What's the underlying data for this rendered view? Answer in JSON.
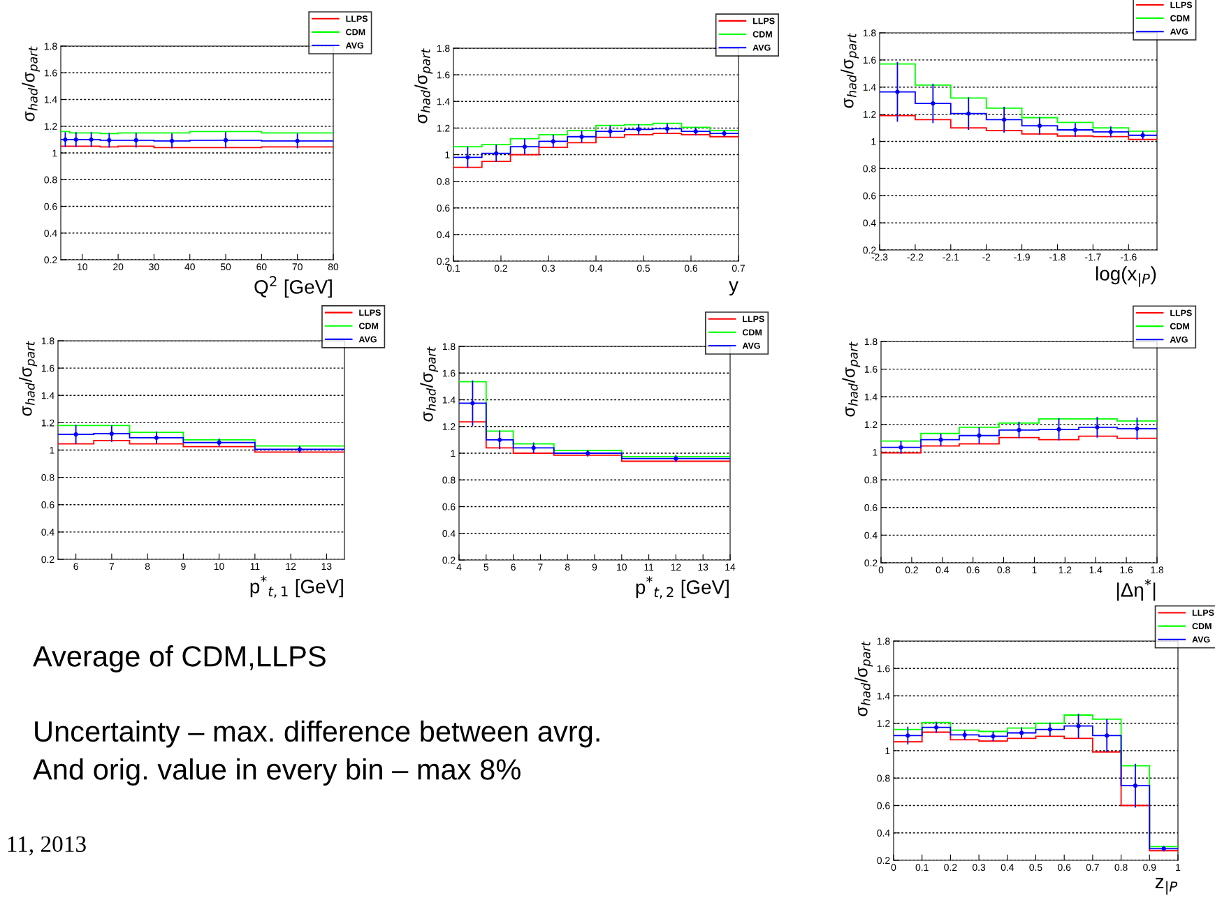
{
  "chart_data": [
    {
      "type": "histogram",
      "xlabel": "Q$^{2}$ [GeV]",
      "ylabel": "σ$_{had}$/σ$_{part}$",
      "bins": [
        4,
        6.5,
        10,
        15,
        20,
        30,
        40,
        60,
        80
      ],
      "xlim": [
        4,
        80
      ],
      "xticks": [
        10,
        20,
        30,
        40,
        50,
        60,
        70,
        80
      ],
      "ylim": [
        0.2,
        1.8
      ],
      "yticks": [
        0.2,
        0.4,
        0.6,
        0.8,
        1,
        1.2,
        1.4,
        1.6,
        1.8
      ],
      "grid": "y",
      "legend": "top right",
      "series": [
        {
          "name": "LLPS",
          "color": "#ff0000",
          "values": [
            1.05,
            1.05,
            1.05,
            1.045,
            1.05,
            1.04,
            1.04,
            1.045
          ]
        },
        {
          "name": "CDM",
          "color": "#00ff00",
          "values": [
            1.16,
            1.15,
            1.15,
            1.145,
            1.15,
            1.15,
            1.16,
            1.15
          ]
        },
        {
          "name": "AVG",
          "color": "#0000ff",
          "values": [
            1.1,
            1.1,
            1.1,
            1.095,
            1.095,
            1.09,
            1.095,
            1.09
          ]
        },
        {
          "type": "scatter",
          "marker": "circle",
          "color": "#0000ff",
          "x": [
            5.25,
            8.25,
            12.5,
            17.5,
            25,
            35,
            50,
            70
          ],
          "values": [
            1.1,
            1.1,
            1.1,
            1.095,
            1.095,
            1.09,
            1.095,
            1.09
          ],
          "errors": [
            0.055,
            0.055,
            0.055,
            0.055,
            0.055,
            0.055,
            0.06,
            0.055
          ]
        }
      ]
    },
    {
      "type": "histogram",
      "xlabel": "y",
      "ylabel": "σ$_{had}$/σ$_{part}$",
      "bins": [
        0.1,
        0.16,
        0.22,
        0.28,
        0.34,
        0.4,
        0.46,
        0.52,
        0.58,
        0.64,
        0.7
      ],
      "xlim": [
        0.1,
        0.7
      ],
      "xticks": [
        0.1,
        0.2,
        0.3,
        0.4,
        0.5,
        0.6,
        0.7
      ],
      "ylim": [
        0.2,
        1.8
      ],
      "yticks": [
        0.2,
        0.4,
        0.6,
        0.8,
        1,
        1.2,
        1.4,
        1.6,
        1.8
      ],
      "grid": "y",
      "legend": "top right",
      "series": [
        {
          "name": "LLPS",
          "color": "#ff0000",
          "values": [
            0.905,
            0.95,
            1.0,
            1.055,
            1.09,
            1.13,
            1.15,
            1.16,
            1.15,
            1.135
          ]
        },
        {
          "name": "CDM",
          "color": "#00ff00",
          "values": [
            1.06,
            1.075,
            1.12,
            1.15,
            1.18,
            1.22,
            1.225,
            1.235,
            1.205,
            1.18
          ]
        },
        {
          "name": "AVG",
          "color": "#0000ff",
          "values": [
            0.98,
            1.01,
            1.06,
            1.1,
            1.135,
            1.175,
            1.19,
            1.195,
            1.175,
            1.16
          ]
        },
        {
          "type": "scatter",
          "marker": "circle",
          "color": "#0000ff",
          "x": [
            0.13,
            0.19,
            0.25,
            0.31,
            0.37,
            0.43,
            0.49,
            0.55,
            0.61,
            0.67
          ],
          "values": [
            0.98,
            1.01,
            1.06,
            1.1,
            1.135,
            1.175,
            1.19,
            1.195,
            1.175,
            1.16
          ],
          "errors": [
            0.08,
            0.065,
            0.06,
            0.05,
            0.045,
            0.045,
            0.04,
            0.04,
            0.03,
            0.025
          ]
        }
      ]
    },
    {
      "type": "histogram",
      "xlabel": "log(x$_{|P}$)",
      "ylabel": "σ$_{had}$/σ$_{part}$",
      "bins": [
        -2.3,
        -2.2,
        -2.1,
        -2.0,
        -1.9,
        -1.8,
        -1.7,
        -1.6,
        -1.52
      ],
      "xlim": [
        -2.3,
        -1.52
      ],
      "xticks": [
        -2.3,
        -2.2,
        -2.1,
        -2,
        -1.9,
        -1.8,
        -1.7,
        -1.6
      ],
      "ylim": [
        0.2,
        1.8
      ],
      "yticks": [
        0.2,
        0.4,
        0.6,
        0.8,
        1,
        1.2,
        1.4,
        1.6,
        1.8
      ],
      "grid": "y",
      "legend": "top right",
      "series": [
        {
          "name": "LLPS",
          "color": "#ff0000",
          "values": [
            1.19,
            1.16,
            1.1,
            1.08,
            1.055,
            1.04,
            1.035,
            1.015
          ]
        },
        {
          "name": "CDM",
          "color": "#00ff00",
          "values": [
            1.57,
            1.415,
            1.32,
            1.245,
            1.175,
            1.14,
            1.1,
            1.075
          ]
        },
        {
          "name": "AVG",
          "color": "#0000ff",
          "values": [
            1.365,
            1.28,
            1.205,
            1.16,
            1.115,
            1.085,
            1.07,
            1.045
          ]
        },
        {
          "type": "scatter",
          "marker": "circle",
          "color": "#0000ff",
          "x": [
            -2.25,
            -2.15,
            -2.05,
            -1.95,
            -1.85,
            -1.75,
            -1.65,
            -1.56
          ],
          "values": [
            1.365,
            1.28,
            1.205,
            1.16,
            1.115,
            1.085,
            1.07,
            1.045
          ],
          "errors": [
            0.22,
            0.145,
            0.12,
            0.095,
            0.065,
            0.05,
            0.04,
            0.03
          ]
        }
      ]
    },
    {
      "type": "histogram",
      "xlabel": "p$^{*}$$_{t,1}$ [GeV]",
      "ylabel": "σ$_{had}$/σ$_{part}$",
      "bins": [
        5.5,
        6.5,
        7.5,
        9,
        11,
        13.5
      ],
      "xlim": [
        5.5,
        13.5
      ],
      "xticks": [
        6,
        7,
        8,
        9,
        10,
        11,
        12,
        13
      ],
      "ylim": [
        0.2,
        1.8
      ],
      "yticks": [
        0.2,
        0.4,
        0.6,
        0.8,
        1,
        1.2,
        1.4,
        1.6,
        1.8
      ],
      "grid": "y",
      "legend": "top right",
      "series": [
        {
          "name": "LLPS",
          "color": "#ff0000",
          "values": [
            1.045,
            1.07,
            1.045,
            1.025,
            0.985
          ]
        },
        {
          "name": "CDM",
          "color": "#00ff00",
          "values": [
            1.18,
            1.18,
            1.13,
            1.075,
            1.03
          ]
        },
        {
          "name": "AVG",
          "color": "#0000ff",
          "values": [
            1.115,
            1.12,
            1.09,
            1.055,
            1.005
          ]
        },
        {
          "type": "scatter",
          "marker": "circle",
          "color": "#0000ff",
          "x": [
            6,
            7,
            8.25,
            10,
            12.25
          ],
          "values": [
            1.115,
            1.12,
            1.09,
            1.055,
            1.005
          ],
          "errors": [
            0.07,
            0.06,
            0.045,
            0.03,
            0.025
          ]
        }
      ]
    },
    {
      "type": "histogram",
      "xlabel": "p$^{*}$$_{t,2}$ [GeV]",
      "ylabel": "σ$_{had}$/σ$_{part}$",
      "bins": [
        4,
        5,
        6,
        7.5,
        10,
        14
      ],
      "xlim": [
        4,
        14
      ],
      "xticks": [
        4,
        5,
        6,
        7,
        8,
        9,
        10,
        11,
        12,
        13,
        14
      ],
      "ylim": [
        0.2,
        1.8
      ],
      "yticks": [
        0.2,
        0.4,
        0.6,
        0.8,
        1,
        1.2,
        1.4,
        1.6,
        1.8
      ],
      "grid": "y",
      "legend": "top right",
      "series": [
        {
          "name": "LLPS",
          "color": "#ff0000",
          "values": [
            1.235,
            1.04,
            1.0,
            0.985,
            0.94
          ]
        },
        {
          "name": "CDM",
          "color": "#00ff00",
          "values": [
            1.535,
            1.165,
            1.07,
            1.02,
            0.975
          ]
        },
        {
          "name": "AVG",
          "color": "#0000ff",
          "values": [
            1.375,
            1.1,
            1.04,
            1.0,
            0.96
          ]
        },
        {
          "type": "scatter",
          "marker": "circle",
          "color": "#0000ff",
          "x": [
            4.5,
            5.5,
            6.75,
            8.75,
            12
          ],
          "values": [
            1.375,
            1.1,
            1.04,
            1.0,
            0.96
          ],
          "errors": [
            0.17,
            0.07,
            0.04,
            0.025,
            0.025
          ]
        }
      ]
    },
    {
      "type": "histogram",
      "xlabel": "|Δη$^{*}$|",
      "ylabel": "σ$_{had}$/σ$_{part}$",
      "bins": [
        0,
        0.26,
        0.51,
        0.77,
        1.03,
        1.29,
        1.54,
        1.8
      ],
      "xlim": [
        0,
        1.8
      ],
      "xticks": [
        0,
        0.2,
        0.4,
        0.6,
        0.8,
        1,
        1.2,
        1.4,
        1.6,
        1.8
      ],
      "ylim": [
        0.2,
        1.8
      ],
      "yticks": [
        0.2,
        0.4,
        0.6,
        0.8,
        1,
        1.2,
        1.4,
        1.6,
        1.8
      ],
      "grid": "y",
      "legend": "top right",
      "series": [
        {
          "name": "LLPS",
          "color": "#ff0000",
          "values": [
            0.995,
            1.045,
            1.06,
            1.105,
            1.09,
            1.115,
            1.1
          ]
        },
        {
          "name": "CDM",
          "color": "#00ff00",
          "values": [
            1.08,
            1.135,
            1.18,
            1.21,
            1.24,
            1.24,
            1.225
          ]
        },
        {
          "name": "AVG",
          "color": "#0000ff",
          "values": [
            1.035,
            1.09,
            1.12,
            1.16,
            1.165,
            1.18,
            1.17
          ]
        },
        {
          "type": "scatter",
          "marker": "circle",
          "color": "#0000ff",
          "x": [
            0.13,
            0.39,
            0.64,
            0.9,
            1.16,
            1.41,
            1.67
          ],
          "values": [
            1.035,
            1.09,
            1.12,
            1.16,
            1.165,
            1.18,
            1.17
          ],
          "errors": [
            0.045,
            0.045,
            0.06,
            0.06,
            0.08,
            0.075,
            0.08
          ]
        }
      ]
    },
    {
      "type": "histogram",
      "xlabel": "z$_{|P}$",
      "ylabel": "σ$_{had}$/σ$_{part}$",
      "bins": [
        0,
        0.1,
        0.2,
        0.3,
        0.4,
        0.5,
        0.6,
        0.7,
        0.8,
        0.9,
        1.0
      ],
      "xlim": [
        0,
        1
      ],
      "xticks": [
        0,
        0.1,
        0.2,
        0.3,
        0.4,
        0.5,
        0.6,
        0.7,
        0.8,
        0.9,
        1
      ],
      "ylim": [
        0.2,
        1.8
      ],
      "yticks": [
        0.2,
        0.4,
        0.6,
        0.8,
        1,
        1.2,
        1.4,
        1.6,
        1.8
      ],
      "grid": "y",
      "legend": "top right",
      "series": [
        {
          "name": "LLPS",
          "color": "#ff0000",
          "values": [
            1.065,
            1.135,
            1.08,
            1.07,
            1.09,
            1.105,
            1.09,
            0.99,
            0.6,
            0.27
          ]
        },
        {
          "name": "CDM",
          "color": "#00ff00",
          "values": [
            1.155,
            1.205,
            1.15,
            1.14,
            1.165,
            1.2,
            1.26,
            1.23,
            0.89,
            0.3
          ]
        },
        {
          "name": "AVG",
          "color": "#0000ff",
          "values": [
            1.11,
            1.17,
            1.115,
            1.105,
            1.13,
            1.155,
            1.18,
            1.11,
            0.745,
            0.285
          ]
        },
        {
          "type": "scatter",
          "marker": "circle",
          "color": "#0000ff",
          "x": [
            0.05,
            0.15,
            0.25,
            0.35,
            0.45,
            0.55,
            0.65,
            0.75,
            0.85,
            0.95
          ],
          "values": [
            1.11,
            1.17,
            1.115,
            1.105,
            1.13,
            1.155,
            1.18,
            1.11,
            0.745,
            0.285
          ],
          "errors": [
            0.065,
            0.04,
            0.035,
            0.035,
            0.04,
            0.05,
            0.09,
            0.12,
            0.16,
            0.02
          ]
        }
      ]
    },
    {
      "type": "other",
      "annotations": [
        "Average of CDM,LLPS",
        "Uncertainty – max. difference between avrg.",
        "And orig. value in every bin – max 8%",
        "11, 2013"
      ]
    }
  ]
}
